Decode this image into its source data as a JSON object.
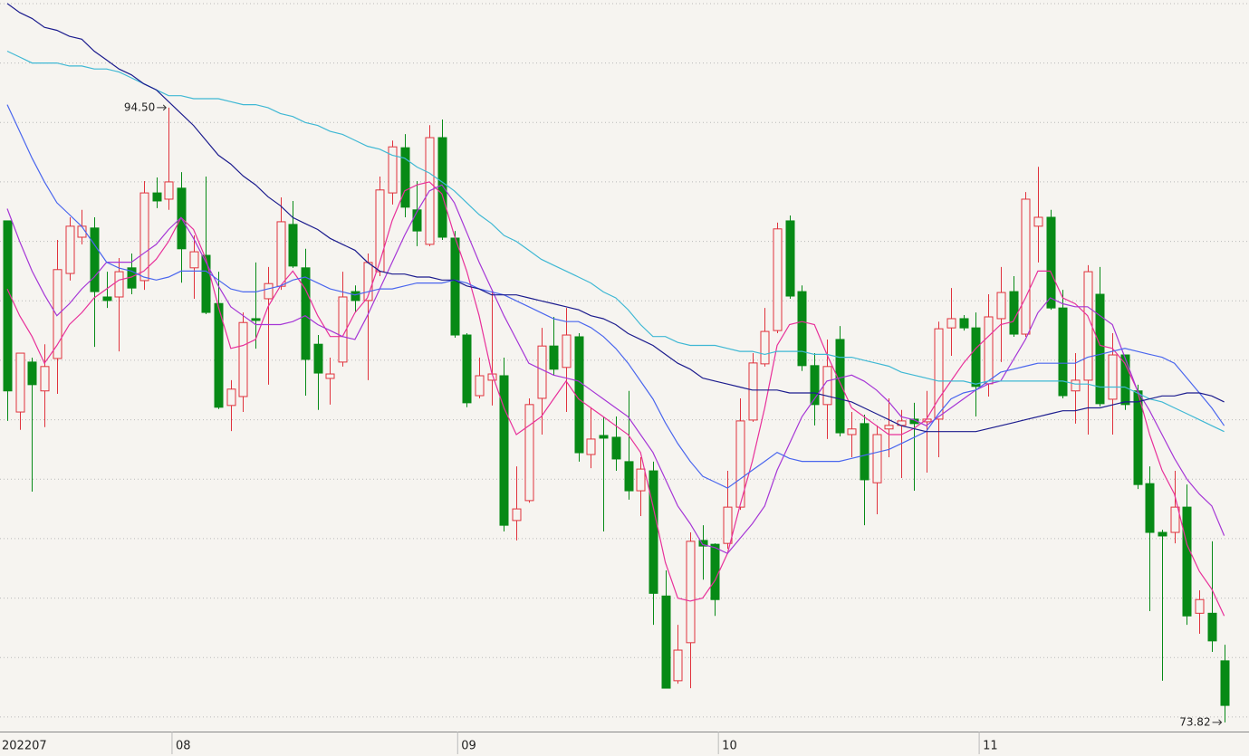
{
  "chart_data": {
    "type": "candlestick",
    "categories": [
      "202207",
      null,
      null,
      null,
      null,
      null,
      null,
      null,
      null,
      null,
      null,
      null,
      null,
      null,
      "08",
      null,
      null,
      null,
      null,
      null,
      null,
      null,
      null,
      null,
      null,
      null,
      null,
      null,
      null,
      null,
      null,
      null,
      null,
      null,
      null,
      null,
      null,
      "09",
      null,
      null,
      null,
      null,
      null,
      null,
      null,
      null,
      null,
      null,
      null,
      null,
      null,
      null,
      null,
      null,
      null,
      null,
      null,
      null,
      "10",
      null,
      null,
      null,
      null,
      null,
      null,
      null,
      null,
      null,
      null,
      null,
      null,
      null,
      null,
      null,
      null,
      null,
      null,
      null,
      null,
      "11",
      null,
      null,
      null,
      null,
      null,
      null,
      null,
      null,
      null,
      null,
      null,
      null,
      null,
      null,
      null,
      null,
      null,
      null,
      null
    ],
    "open": [
      90.69,
      84.26,
      85.94,
      84.97,
      86.06,
      88.92,
      90.14,
      90.45,
      88.13,
      88.13,
      89.11,
      88.68,
      91.63,
      91.42,
      91.79,
      89.11,
      89.53,
      87.91,
      84.48,
      84.78,
      87.4,
      88.07,
      88.49,
      90.57,
      89.11,
      86.54,
      85.39,
      85.94,
      88.31,
      88.01,
      88.98,
      91.63,
      93.15,
      91.06,
      89.9,
      93.49,
      90.11,
      86.85,
      84.81,
      85.33,
      85.48,
      80.61,
      81.28,
      84.72,
      86.48,
      85.76,
      86.79,
      82.83,
      83.47,
      83.41,
      82.59,
      81.61,
      82.28,
      78.07,
      75.22,
      76.5,
      79.94,
      79.81,
      79.84,
      81.06,
      83.99,
      85.88,
      87.0,
      90.69,
      88.31,
      85.82,
      84.51,
      86.7,
      83.5,
      83.87,
      81.88,
      83.69,
      83.81,
      84.02,
      83.93,
      84.02,
      87.09,
      87.4,
      87.09,
      85.21,
      87.4,
      88.31,
      86.88,
      90.51,
      90.81,
      87.76,
      84.97,
      85.33,
      88.22,
      84.69,
      86.18,
      84.97,
      81.85,
      80.21,
      80.21,
      81.06,
      77.49,
      77.49,
      75.89
    ],
    "high": [
      90.69,
      86.24,
      86.09,
      86.54,
      90.05,
      90.81,
      91.06,
      90.81,
      88.98,
      89.44,
      89.59,
      92.03,
      92.15,
      94.5,
      92.33,
      90.2,
      92.18,
      88.98,
      85.33,
      87.61,
      89.29,
      89.14,
      91.48,
      91.36,
      89.75,
      86.85,
      86.09,
      88.98,
      88.52,
      89.59,
      92.18,
      93.39,
      93.61,
      92.03,
      93.91,
      94.1,
      90.35,
      86.91,
      86.09,
      88.37,
      86.09,
      82.43,
      84.72,
      87.09,
      87.46,
      87.76,
      86.91,
      84.42,
      84.11,
      84.11,
      84.97,
      82.74,
      82.59,
      78.93,
      77.1,
      80.21,
      80.45,
      79.84,
      82.28,
      84.72,
      86.24,
      87.76,
      90.63,
      90.87,
      88.52,
      86.24,
      86.7,
      87.15,
      84.26,
      84.17,
      83.81,
      84.72,
      84.33,
      84.57,
      84.97,
      87.3,
      88.43,
      87.52,
      87.61,
      88.22,
      89.14,
      88.83,
      91.66,
      92.51,
      91.06,
      88.37,
      86.24,
      89.2,
      89.14,
      86.91,
      86.18,
      85.18,
      82.43,
      80.3,
      82.28,
      81.82,
      78.26,
      79.91,
      76.43
    ],
    "low": [
      83.96,
      83.66,
      81.58,
      83.75,
      84.87,
      88.68,
      89.9,
      86.45,
      87.76,
      86.3,
      88.22,
      88.37,
      91.12,
      91.06,
      88.61,
      88.07,
      87.55,
      84.36,
      83.62,
      84.26,
      86.39,
      85.18,
      88.37,
      89.11,
      84.81,
      84.33,
      84.51,
      85.79,
      87.61,
      85.33,
      88.83,
      91.24,
      90.81,
      89.84,
      89.84,
      90.05,
      86.76,
      84.42,
      84.72,
      84.48,
      80.24,
      79.94,
      81.21,
      83.5,
      85.48,
      84.26,
      82.59,
      82.37,
      80.24,
      82.28,
      81.31,
      80.76,
      77.1,
      74.97,
      75.12,
      74.97,
      78.62,
      77.4,
      79.66,
      80.97,
      83.93,
      85.79,
      86.91,
      88.07,
      85.64,
      83.81,
      83.35,
      83.44,
      82.74,
      80.45,
      80.82,
      82.74,
      82.04,
      81.61,
      82.22,
      82.74,
      86.15,
      87.0,
      84.11,
      84.78,
      85.94,
      86.79,
      86.79,
      89.29,
      87.7,
      84.72,
      83.87,
      83.5,
      84.45,
      83.5,
      84.33,
      81.67,
      77.56,
      75.22,
      79.84,
      77.1,
      76.8,
      76.19,
      73.82
    ],
    "close": [
      84.97,
      86.24,
      85.18,
      85.79,
      89.05,
      90.51,
      90.51,
      88.31,
      88.01,
      88.98,
      88.43,
      91.63,
      91.36,
      92.0,
      89.75,
      89.65,
      87.61,
      84.42,
      85.03,
      87.27,
      87.34,
      88.58,
      90.66,
      89.17,
      86.03,
      85.57,
      85.54,
      88.13,
      88.01,
      89.29,
      91.73,
      93.18,
      91.15,
      90.35,
      93.49,
      90.14,
      86.85,
      84.57,
      85.48,
      85.54,
      80.45,
      81.0,
      84.51,
      86.48,
      85.7,
      86.85,
      82.89,
      83.35,
      83.38,
      82.68,
      81.61,
      82.34,
      78.16,
      74.97,
      76.25,
      79.91,
      79.75,
      77.95,
      81.06,
      83.96,
      85.91,
      86.97,
      90.42,
      88.16,
      85.82,
      84.51,
      85.79,
      83.56,
      83.69,
      81.98,
      83.5,
      83.81,
      83.96,
      83.87,
      84.02,
      87.06,
      87.4,
      87.09,
      85.12,
      87.46,
      88.28,
      86.88,
      91.42,
      90.81,
      87.76,
      84.81,
      85.33,
      88.98,
      84.54,
      86.18,
      84.51,
      81.82,
      80.21,
      80.09,
      81.06,
      77.4,
      77.95,
      76.56,
      74.39
    ],
    "up_color": "#e0323c",
    "down_color": "#078a16",
    "lines": [
      {
        "color": "#e8309a",
        "values": [
          88.4,
          87.5,
          86.8,
          85.9,
          86.5,
          87.2,
          87.6,
          88.1,
          88.4,
          88.7,
          88.8,
          89.0,
          89.4,
          90.0,
          90.8,
          90.4,
          89.4,
          87.8,
          86.4,
          86.5,
          86.7,
          87.8,
          88.5,
          89.0,
          88.4,
          87.5,
          86.8,
          86.8,
          87.6,
          88.1,
          89.3,
          90.7,
          91.7,
          91.9,
          92.0,
          91.6,
          90.2,
          89.0,
          87.5,
          85.6,
          84.4,
          83.5,
          83.8,
          84.1,
          84.7,
          85.3,
          84.7,
          84.4,
          84.1,
          83.8,
          83.5,
          82.9,
          81.1,
          79.2,
          78.0,
          77.9,
          78.0,
          78.6,
          79.5,
          81.1,
          82.6,
          84.4,
          86.5,
          87.2,
          87.3,
          87.2,
          86.2,
          85.3,
          84.4,
          84.1,
          83.8,
          83.5,
          83.5,
          83.7,
          84.0,
          84.7,
          85.3,
          85.9,
          86.4,
          86.8,
          87.2,
          87.3,
          88.1,
          89.0,
          89.0,
          88.1,
          87.9,
          87.5,
          86.5,
          86.4,
          85.9,
          85.0,
          83.5,
          82.3,
          81.5,
          79.8,
          78.9,
          78.3,
          77.4
        ]
      },
      {
        "color": "#a636d6",
        "values": [
          91.1,
          90.0,
          89.0,
          88.2,
          87.5,
          87.9,
          88.4,
          88.8,
          89.3,
          89.3,
          89.3,
          89.6,
          89.9,
          90.4,
          90.8,
          90.1,
          89.3,
          88.5,
          87.8,
          87.5,
          87.2,
          87.2,
          87.2,
          87.3,
          87.5,
          87.2,
          87.0,
          86.8,
          86.7,
          87.5,
          88.4,
          89.3,
          90.2,
          91.0,
          91.7,
          91.9,
          91.3,
          90.3,
          89.3,
          88.4,
          87.5,
          86.7,
          85.9,
          85.7,
          85.5,
          85.4,
          85.3,
          85.0,
          84.7,
          84.4,
          84.1,
          83.5,
          82.9,
          82.0,
          81.1,
          80.5,
          79.8,
          79.7,
          79.5,
          80.0,
          80.5,
          81.1,
          82.3,
          83.2,
          84.1,
          84.7,
          85.3,
          85.4,
          85.5,
          85.3,
          85.0,
          84.6,
          84.1,
          84.0,
          83.8,
          84.1,
          84.4,
          84.7,
          85.0,
          85.2,
          85.3,
          86.0,
          86.7,
          87.6,
          88.1,
          87.9,
          87.8,
          87.8,
          87.5,
          87.2,
          86.1,
          85.0,
          84.3,
          83.5,
          82.7,
          82.0,
          81.5,
          81.1,
          80.1
        ]
      },
      {
        "color": "#4a66ee",
        "values": [
          94.6,
          93.7,
          92.8,
          92.0,
          91.3,
          90.9,
          90.5,
          89.9,
          89.3,
          89.1,
          89.0,
          88.8,
          88.7,
          88.8,
          89.0,
          89.0,
          89.0,
          88.7,
          88.4,
          88.3,
          88.3,
          88.4,
          88.5,
          88.7,
          88.8,
          88.6,
          88.4,
          88.3,
          88.2,
          88.3,
          88.4,
          88.4,
          88.5,
          88.6,
          88.6,
          88.6,
          88.7,
          88.6,
          88.4,
          88.3,
          88.2,
          88.0,
          87.8,
          87.6,
          87.4,
          87.3,
          87.3,
          87.1,
          86.8,
          86.4,
          85.9,
          85.3,
          84.7,
          83.9,
          83.2,
          82.6,
          82.1,
          81.9,
          81.7,
          82.0,
          82.3,
          82.6,
          82.9,
          82.7,
          82.6,
          82.6,
          82.6,
          82.6,
          82.7,
          82.8,
          82.9,
          83.0,
          83.2,
          83.4,
          83.6,
          84.2,
          84.7,
          84.9,
          85.0,
          85.3,
          85.6,
          85.7,
          85.8,
          85.9,
          85.9,
          85.9,
          85.9,
          86.1,
          86.2,
          86.3,
          86.4,
          86.3,
          86.2,
          86.1,
          85.9,
          85.4,
          84.9,
          84.4,
          83.8
        ]
      },
      {
        "color": "#3fb8d4",
        "values": [
          96.4,
          96.2,
          96.0,
          96.0,
          96.0,
          95.9,
          95.9,
          95.8,
          95.8,
          95.7,
          95.5,
          95.3,
          95.1,
          94.9,
          94.9,
          94.8,
          94.8,
          94.8,
          94.7,
          94.6,
          94.6,
          94.5,
          94.3,
          94.2,
          94.0,
          93.9,
          93.7,
          93.6,
          93.4,
          93.2,
          93.1,
          92.9,
          92.8,
          92.5,
          92.3,
          92.0,
          91.7,
          91.3,
          90.9,
          90.6,
          90.2,
          90.0,
          89.7,
          89.4,
          89.2,
          89.0,
          88.8,
          88.6,
          88.3,
          88.1,
          87.7,
          87.2,
          86.8,
          86.8,
          86.6,
          86.5,
          86.5,
          86.5,
          86.4,
          86.3,
          86.3,
          86.2,
          86.3,
          86.3,
          86.3,
          86.2,
          86.2,
          86.1,
          86.1,
          86.0,
          85.9,
          85.8,
          85.6,
          85.5,
          85.4,
          85.3,
          85.3,
          85.3,
          85.2,
          85.3,
          85.3,
          85.3,
          85.3,
          85.3,
          85.3,
          85.3,
          85.2,
          85.2,
          85.1,
          85.1,
          85.1,
          84.9,
          84.7,
          84.6,
          84.4,
          84.2,
          84.0,
          83.8,
          83.6
        ]
      },
      {
        "color": "#1c1c8e",
        "values": [
          98.0,
          97.7,
          97.5,
          97.2,
          97.1,
          96.9,
          96.8,
          96.4,
          96.1,
          95.8,
          95.6,
          95.3,
          95.1,
          94.7,
          94.3,
          93.9,
          93.4,
          92.9,
          92.6,
          92.2,
          91.9,
          91.5,
          91.2,
          90.8,
          90.6,
          90.4,
          90.1,
          89.9,
          89.7,
          89.3,
          89.0,
          88.9,
          88.9,
          88.8,
          88.8,
          88.7,
          88.7,
          88.5,
          88.4,
          88.2,
          88.2,
          88.2,
          88.1,
          88.0,
          87.9,
          87.8,
          87.7,
          87.5,
          87.4,
          87.2,
          86.9,
          86.7,
          86.5,
          86.2,
          85.9,
          85.7,
          85.4,
          85.3,
          85.2,
          85.1,
          85.0,
          85.0,
          85.0,
          84.9,
          84.9,
          84.9,
          84.8,
          84.7,
          84.6,
          84.4,
          84.2,
          84.0,
          83.8,
          83.7,
          83.6,
          83.6,
          83.6,
          83.6,
          83.6,
          83.7,
          83.8,
          83.9,
          84.0,
          84.1,
          84.2,
          84.3,
          84.3,
          84.4,
          84.4,
          84.5,
          84.6,
          84.6,
          84.7,
          84.8,
          84.8,
          84.9,
          84.9,
          84.8,
          84.6
        ]
      }
    ],
    "high_label": "94.50",
    "low_label": "73.82",
    "ylim": [
      73.51,
      98.12
    ],
    "yticks": [
      74,
      76,
      78,
      80,
      82,
      84,
      86,
      88,
      90,
      92,
      94,
      96,
      98
    ],
    "grid": true
  }
}
